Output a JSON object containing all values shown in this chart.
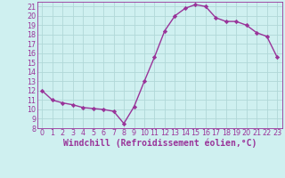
{
  "x": [
    0,
    1,
    2,
    3,
    4,
    5,
    6,
    7,
    8,
    9,
    10,
    11,
    12,
    13,
    14,
    15,
    16,
    17,
    18,
    19,
    20,
    21,
    22,
    23
  ],
  "y": [
    12,
    11,
    10.7,
    10.5,
    10.2,
    10.1,
    10.0,
    9.8,
    8.5,
    10.3,
    13.0,
    15.6,
    18.4,
    20.0,
    20.8,
    21.2,
    21.0,
    19.8,
    19.4,
    19.4,
    19.0,
    18.2,
    17.8,
    15.6
  ],
  "line_color": "#993399",
  "marker": "D",
  "marker_size": 2.2,
  "bg_color": "#cff0f0",
  "grid_color": "#b0d8d8",
  "xlabel": "Windchill (Refroidissement éolien,°C)",
  "xlabel_color": "#993399",
  "tick_color": "#993399",
  "ylim": [
    8,
    21.5
  ],
  "xlim": [
    -0.5,
    23.5
  ],
  "yticks": [
    8,
    9,
    10,
    11,
    12,
    13,
    14,
    15,
    16,
    17,
    18,
    19,
    20,
    21
  ],
  "xticks": [
    0,
    1,
    2,
    3,
    4,
    5,
    6,
    7,
    8,
    9,
    10,
    11,
    12,
    13,
    14,
    15,
    16,
    17,
    18,
    19,
    20,
    21,
    22,
    23
  ],
  "font_size": 5.8,
  "xlabel_font_size": 7.0,
  "line_width": 1.0
}
